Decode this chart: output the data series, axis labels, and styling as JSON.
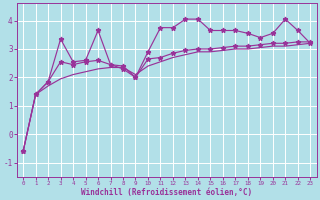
{
  "xlabel": "Windchill (Refroidissement éolien,°C)",
  "bg_color": "#b2e0e8",
  "line_color": "#993399",
  "grid_color": "#ffffff",
  "ylim": [
    -1.5,
    4.6
  ],
  "xlim": [
    -0.5,
    23.5
  ],
  "yticks": [
    -1,
    0,
    1,
    2,
    3,
    4
  ],
  "xticks": [
    0,
    1,
    2,
    3,
    4,
    5,
    6,
    7,
    8,
    9,
    10,
    11,
    12,
    13,
    14,
    15,
    16,
    17,
    18,
    19,
    20,
    21,
    22,
    23
  ],
  "line1_x": [
    0,
    1,
    2,
    3,
    4,
    5,
    6,
    7,
    8,
    9,
    10,
    11,
    12,
    13,
    14,
    15,
    16,
    17,
    18,
    19,
    20,
    21,
    22,
    23
  ],
  "line1_y": [
    -0.6,
    1.4,
    1.85,
    3.35,
    2.55,
    2.6,
    3.65,
    2.45,
    2.4,
    2.0,
    2.9,
    3.75,
    3.75,
    4.05,
    4.05,
    3.65,
    3.65,
    3.65,
    3.55,
    3.4,
    3.55,
    4.05,
    3.65,
    3.2
  ],
  "line2_x": [
    0,
    1,
    2,
    3,
    4,
    5,
    6,
    7,
    8,
    9,
    10,
    11,
    12,
    13,
    14,
    15,
    16,
    17,
    18,
    19,
    20,
    21,
    22,
    23
  ],
  "line2_y": [
    -0.6,
    1.4,
    1.85,
    2.55,
    2.45,
    2.55,
    2.6,
    2.45,
    2.3,
    2.0,
    2.65,
    2.7,
    2.85,
    2.95,
    3.0,
    3.0,
    3.05,
    3.1,
    3.1,
    3.15,
    3.2,
    3.2,
    3.25,
    3.25
  ],
  "line3_x": [
    0,
    1,
    2,
    3,
    4,
    5,
    6,
    7,
    8,
    9,
    10,
    11,
    12,
    13,
    14,
    15,
    16,
    17,
    18,
    19,
    20,
    21,
    22,
    23
  ],
  "line3_y": [
    -0.6,
    1.4,
    1.7,
    1.95,
    2.1,
    2.2,
    2.3,
    2.35,
    2.35,
    2.1,
    2.4,
    2.55,
    2.7,
    2.8,
    2.9,
    2.9,
    2.95,
    3.0,
    3.0,
    3.05,
    3.1,
    3.1,
    3.15,
    3.2
  ]
}
